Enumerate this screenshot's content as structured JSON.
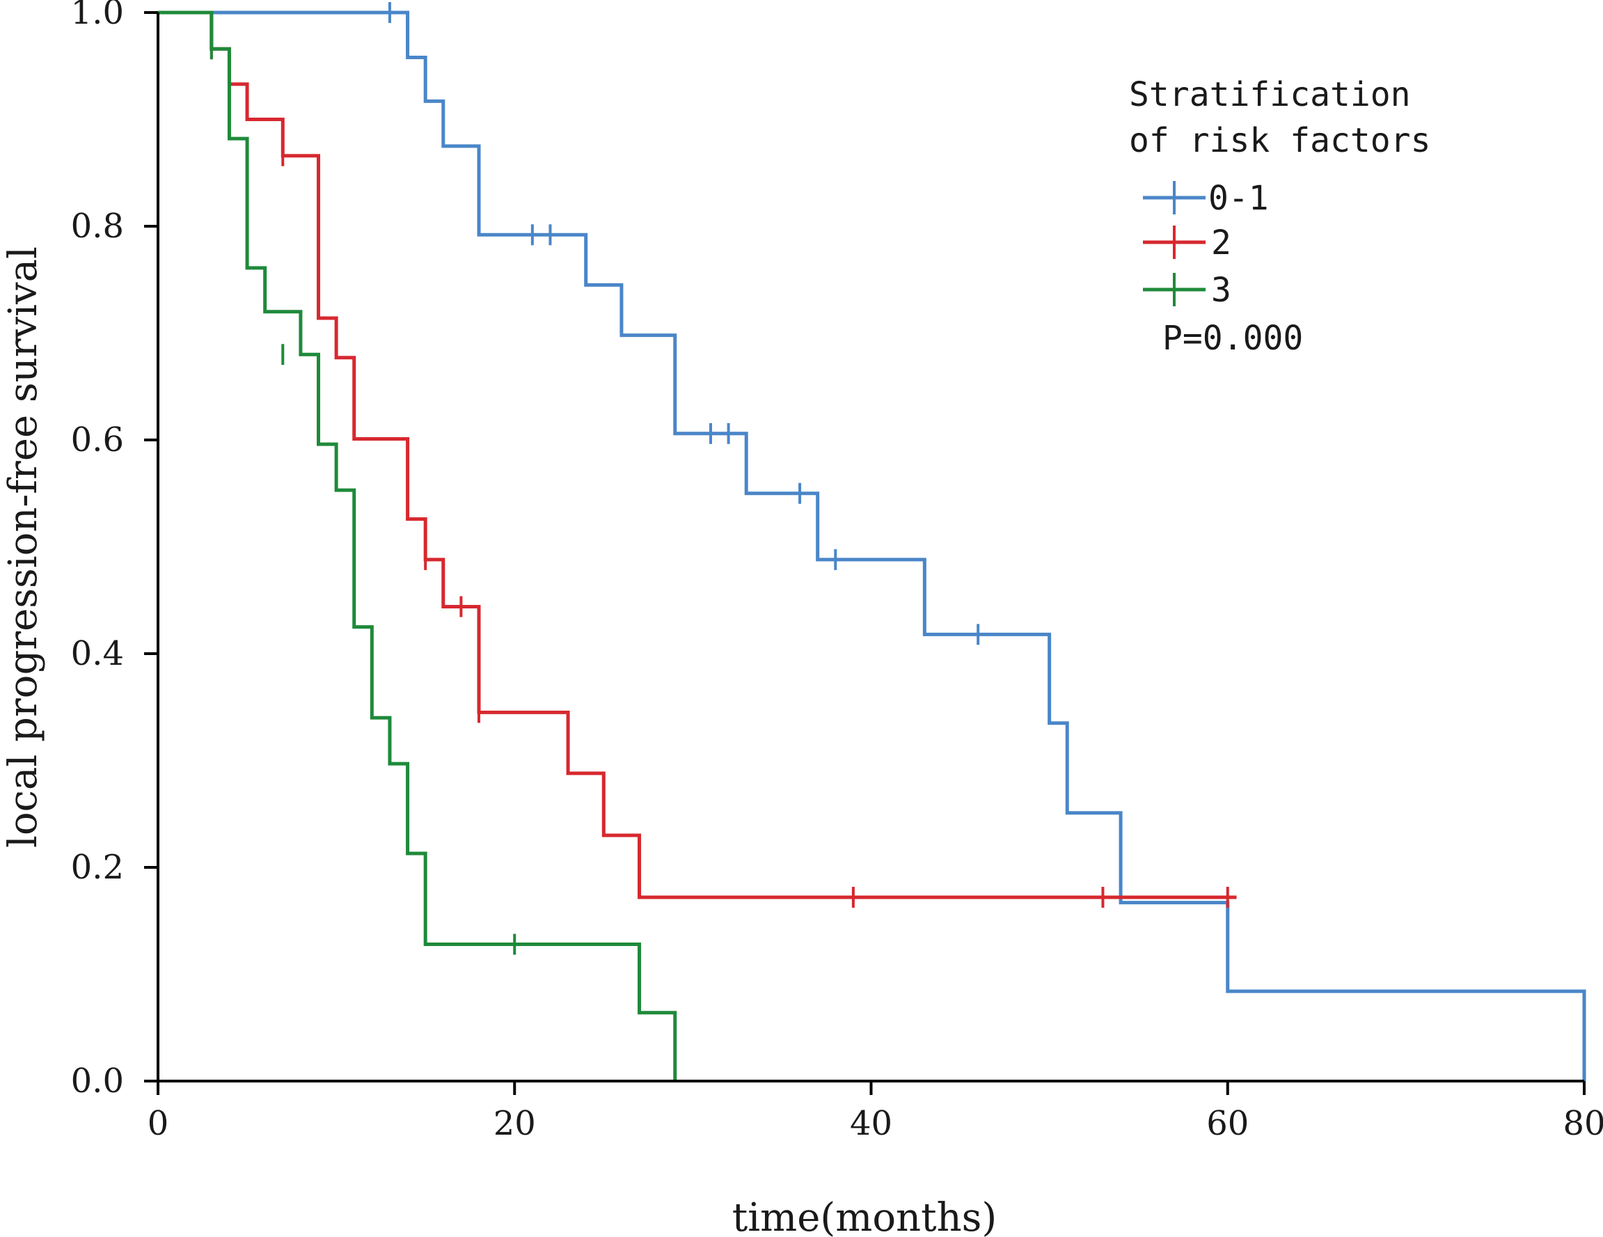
{
  "chart_data": {
    "type": "line",
    "subtype": "kaplan-meier step",
    "title": "",
    "xlabel": "time(months)",
    "ylabel": "local progression-free survival",
    "xlim": [
      0,
      80
    ],
    "ylim": [
      0,
      1.0
    ],
    "xticks": [
      0,
      20,
      40,
      60,
      80
    ],
    "xtick_labels": [
      "0",
      "20",
      "40",
      "60",
      "80"
    ],
    "yticks": [
      0,
      0.2,
      0.4,
      0.6,
      0.8,
      1.0
    ],
    "ytick_labels": [
      "0.0",
      "0.2",
      "0.4",
      "0.6",
      "0.8",
      "1.0"
    ],
    "grid": false,
    "legend": {
      "title_lines": [
        "Stratification",
        "of risk factors"
      ],
      "placement": "top-right"
    },
    "annotation": "P=0.000",
    "series": [
      {
        "name": "0-1",
        "color": "#4a86c8",
        "steps": [
          [
            0,
            1.0
          ],
          [
            14,
            0.958
          ],
          [
            15,
            0.917
          ],
          [
            16,
            0.875
          ],
          [
            18,
            0.792
          ],
          [
            24,
            0.745
          ],
          [
            26,
            0.698
          ],
          [
            29,
            0.606
          ],
          [
            33,
            0.55
          ],
          [
            37,
            0.488
          ],
          [
            43,
            0.418
          ],
          [
            50,
            0.335
          ],
          [
            51,
            0.251
          ],
          [
            54,
            0.167
          ],
          [
            60,
            0.084
          ],
          [
            80,
            0.0
          ]
        ],
        "end_x": 80,
        "censored": [
          [
            13,
            1.0
          ],
          [
            21,
            0.792
          ],
          [
            22,
            0.792
          ],
          [
            31,
            0.606
          ],
          [
            32,
            0.606
          ],
          [
            36,
            0.55
          ],
          [
            38,
            0.488
          ],
          [
            46,
            0.418
          ]
        ]
      },
      {
        "name": "2",
        "color": "#d7282f",
        "steps": [
          [
            0,
            1.0
          ],
          [
            3,
            0.966
          ],
          [
            4,
            0.933
          ],
          [
            5,
            0.9
          ],
          [
            7,
            0.866
          ],
          [
            9,
            0.714
          ],
          [
            10,
            0.677
          ],
          [
            11,
            0.601
          ],
          [
            14,
            0.526
          ],
          [
            15,
            0.488
          ],
          [
            16,
            0.444
          ],
          [
            18,
            0.345
          ],
          [
            23,
            0.288
          ],
          [
            25,
            0.23
          ],
          [
            27,
            0.172
          ]
        ],
        "end_x": 60.5,
        "censored": [
          [
            3,
            0.966
          ],
          [
            4,
            0.933
          ],
          [
            7,
            0.866
          ],
          [
            15,
            0.488
          ],
          [
            17,
            0.444
          ],
          [
            18,
            0.345
          ],
          [
            39,
            0.172
          ],
          [
            53,
            0.172
          ],
          [
            60,
            0.172
          ]
        ]
      },
      {
        "name": "3",
        "color": "#1e8a3a",
        "steps": [
          [
            0,
            1.0
          ],
          [
            3,
            0.966
          ],
          [
            4,
            0.882
          ],
          [
            5,
            0.761
          ],
          [
            6,
            0.72
          ],
          [
            8,
            0.68
          ],
          [
            9,
            0.596
          ],
          [
            10,
            0.553
          ],
          [
            11,
            0.425
          ],
          [
            12,
            0.34
          ],
          [
            13,
            0.297
          ],
          [
            14,
            0.213
          ],
          [
            15,
            0.128
          ],
          [
            27,
            0.064
          ],
          [
            29,
            0.0
          ]
        ],
        "end_x": 29,
        "censored": [
          [
            3,
            0.966
          ],
          [
            7,
            0.68
          ],
          [
            20,
            0.128
          ]
        ]
      }
    ]
  }
}
